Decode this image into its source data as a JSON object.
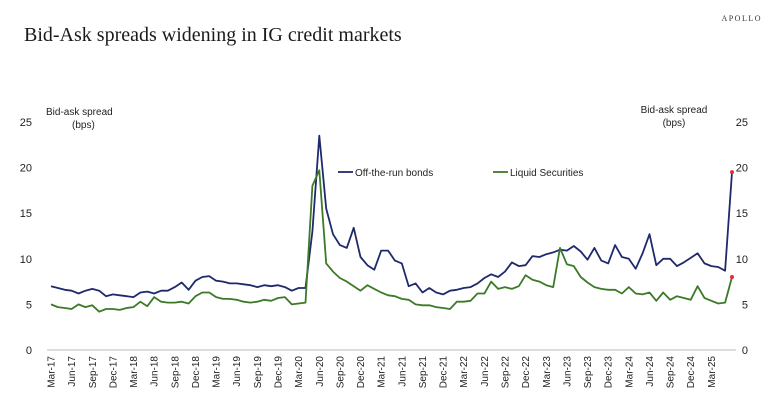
{
  "brand": "APOLLO",
  "chart_data": {
    "type": "line",
    "title": "Bid-Ask spreads widening in IG credit markets",
    "ylabel_left": [
      "Bid-ask spread",
      "(bps)"
    ],
    "ylabel_right": [
      "Bid-ask spread",
      "(bps)"
    ],
    "ylim": [
      0,
      25
    ],
    "yticks": [
      0,
      5,
      10,
      15,
      20,
      25
    ],
    "x_tick_labels": [
      "Mar-17",
      "Jun-17",
      "Sep-17",
      "Dec-17",
      "Mar-18",
      "Jun-18",
      "Sep-18",
      "Dec-18",
      "Mar-19",
      "Jun-19",
      "Sep-19",
      "Dec-19",
      "Mar-20",
      "Jun-20",
      "Sep-20",
      "Dec-20",
      "Mar-21",
      "Jun-21",
      "Sep-21",
      "Dec-21",
      "Mar-22",
      "Jun-22",
      "Sep-22",
      "Dec-22",
      "Mar-23",
      "Jun-23",
      "Sep-23",
      "Dec-23",
      "Mar-24",
      "Jun-24",
      "Sep-24",
      "Dec-24",
      "Mar-25"
    ],
    "series": [
      {
        "name": "Off-the-run bonds",
        "color": "#1f2a6b",
        "values": [
          7.0,
          6.8,
          6.6,
          6.5,
          6.2,
          6.5,
          6.7,
          6.5,
          5.9,
          6.1,
          6.0,
          5.9,
          5.8,
          6.3,
          6.4,
          6.2,
          6.5,
          6.5,
          6.9,
          7.4,
          6.6,
          7.6,
          8.0,
          8.1,
          7.6,
          7.5,
          7.3,
          7.3,
          7.2,
          7.1,
          6.9,
          7.1,
          7.0,
          7.1,
          6.9,
          6.5,
          6.8,
          6.8,
          13.0,
          23.5,
          15.5,
          12.7,
          11.5,
          11.2,
          13.4,
          10.2,
          9.3,
          8.8,
          10.9,
          10.9,
          9.8,
          9.5,
          7.0,
          7.3,
          6.3,
          6.8,
          6.3,
          6.1,
          6.5,
          6.6,
          6.8,
          6.9,
          7.3,
          7.9,
          8.3,
          8.0,
          8.6,
          9.6,
          9.2,
          9.3,
          10.3,
          10.2,
          10.5,
          10.7,
          11.0,
          10.9,
          11.4,
          10.8,
          9.9,
          11.2,
          9.8,
          9.5,
          11.5,
          10.2,
          10.0,
          8.9,
          10.6,
          12.7,
          9.3,
          10.0,
          10.0,
          9.2,
          9.6,
          10.1,
          10.6,
          9.5,
          9.2,
          9.1,
          8.7,
          19.5
        ]
      },
      {
        "name": "Liquid Securities",
        "color": "#3c7a28",
        "values": [
          5.0,
          4.7,
          4.6,
          4.5,
          5.0,
          4.7,
          4.9,
          4.2,
          4.5,
          4.5,
          4.4,
          4.6,
          4.7,
          5.3,
          4.8,
          5.8,
          5.3,
          5.2,
          5.2,
          5.3,
          5.1,
          5.9,
          6.3,
          6.3,
          5.8,
          5.6,
          5.6,
          5.5,
          5.3,
          5.2,
          5.3,
          5.5,
          5.4,
          5.7,
          5.8,
          5.0,
          5.1,
          5.2,
          18.0,
          19.7,
          9.5,
          8.6,
          7.9,
          7.5,
          7.0,
          6.5,
          7.1,
          6.7,
          6.3,
          6.0,
          5.9,
          5.6,
          5.5,
          5.0,
          4.9,
          4.9,
          4.7,
          4.6,
          4.5,
          5.3,
          5.3,
          5.4,
          6.2,
          6.2,
          7.5,
          6.7,
          6.9,
          6.7,
          7.0,
          8.2,
          7.7,
          7.5,
          7.1,
          6.9,
          11.2,
          9.4,
          9.2,
          8.0,
          7.4,
          6.9,
          6.7,
          6.6,
          6.6,
          6.2,
          6.9,
          6.2,
          6.1,
          6.3,
          5.4,
          6.3,
          5.5,
          5.9,
          5.7,
          5.5,
          7.0,
          5.7,
          5.4,
          5.1,
          5.2,
          8.0
        ]
      }
    ],
    "legend": "top-center-inside"
  }
}
